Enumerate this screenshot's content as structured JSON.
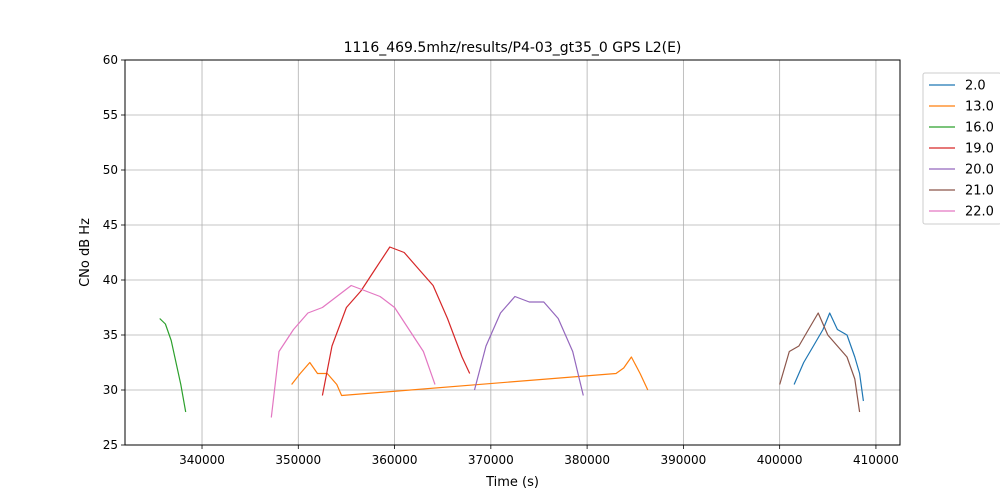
{
  "chart_data": {
    "type": "line",
    "title": "1116_469.5mhz/results/P4-03_gt35_0 GPS L2(E)",
    "xlabel": "Time (s)",
    "ylabel": "CNo dB Hz",
    "xlim": [
      332000,
      412500
    ],
    "ylim": [
      25,
      60
    ],
    "xticks": [
      340000,
      350000,
      360000,
      370000,
      380000,
      390000,
      400000,
      410000
    ],
    "xtick_labels": [
      "340000",
      "350000",
      "360000",
      "370000",
      "380000",
      "390000",
      "400000",
      "410000"
    ],
    "yticks": [
      25,
      30,
      35,
      40,
      45,
      50,
      55,
      60
    ],
    "ytick_labels": [
      "25",
      "30",
      "35",
      "40",
      "45",
      "50",
      "55",
      "60"
    ],
    "grid": true,
    "legend_position": "outside-top-right",
    "series": [
      {
        "name": "2.0",
        "color": "#1f77b4",
        "x": [
          401500,
          402500,
          403500,
          404500,
          405200,
          406000,
          407000,
          407800,
          408300,
          408700
        ],
        "y": [
          30.5,
          32.5,
          34,
          35.5,
          37,
          35.5,
          35,
          33,
          31.5,
          29
        ]
      },
      {
        "name": "13.0",
        "color": "#ff7f0e",
        "x": [
          349300,
          350200,
          351200,
          352000,
          353000,
          354000,
          354500,
          383000,
          383800,
          384600,
          385500,
          386300
        ],
        "y": [
          30.5,
          31.5,
          32.5,
          31.5,
          31.5,
          30.5,
          29.5,
          31.5,
          32,
          33,
          31.5,
          30
        ]
      },
      {
        "name": "16.0",
        "color": "#2ca02c",
        "x": [
          335600,
          336200,
          336800,
          337300,
          337800,
          338300
        ],
        "y": [
          36.5,
          36,
          34.5,
          32.5,
          30.5,
          28
        ]
      },
      {
        "name": "19.0",
        "color": "#d62728",
        "x": [
          352500,
          353500,
          355000,
          356500,
          358000,
          359500,
          361000,
          362500,
          364000,
          365500,
          367000,
          367800
        ],
        "y": [
          29.5,
          34,
          37.5,
          39,
          41,
          43,
          42.5,
          41,
          39.5,
          36.5,
          33,
          31.5
        ]
      },
      {
        "name": "20.0",
        "color": "#9467bd",
        "x": [
          368300,
          369500,
          371000,
          372500,
          374000,
          375500,
          377000,
          378500,
          379600
        ],
        "y": [
          30,
          34,
          37,
          38.5,
          38,
          38,
          36.5,
          33.5,
          29.5
        ]
      },
      {
        "name": "21.0",
        "color": "#8c564b",
        "x": [
          400000,
          401000,
          402000,
          403000,
          404000,
          405000,
          406000,
          407000,
          407800,
          408300
        ],
        "y": [
          30.5,
          33.5,
          34,
          35.5,
          37,
          35,
          34,
          33,
          31,
          28
        ]
      },
      {
        "name": "22.0",
        "color": "#e377c2",
        "x": [
          347200,
          348000,
          349500,
          351000,
          352500,
          354000,
          355500,
          357000,
          358500,
          360000,
          361500,
          363000,
          364200
        ],
        "y": [
          27.5,
          33.5,
          35.5,
          37,
          37.5,
          38.5,
          39.5,
          39,
          38.5,
          37.5,
          35.5,
          33.5,
          30.5
        ]
      }
    ]
  }
}
